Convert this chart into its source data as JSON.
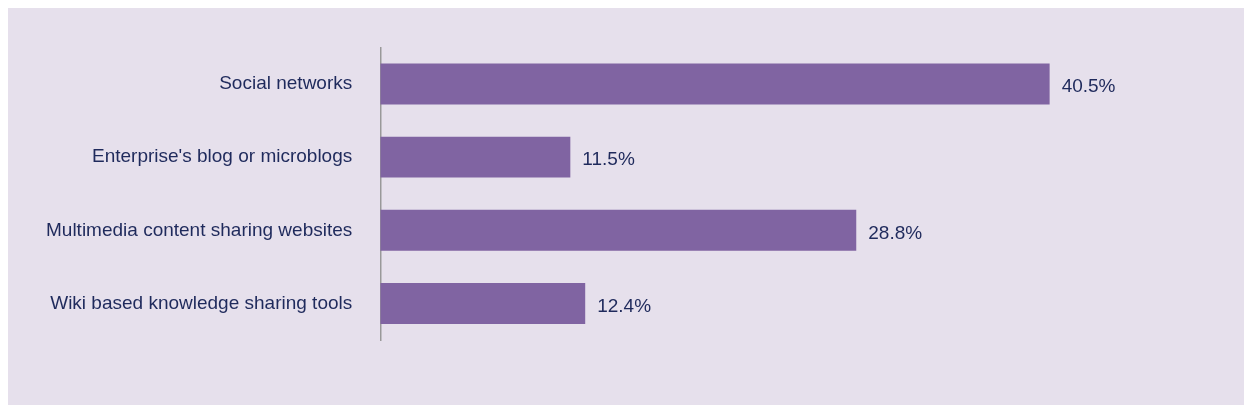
{
  "chart_data": {
    "type": "bar",
    "orientation": "horizontal",
    "categories": [
      "Social networks",
      "Enterprise's blog or microblogs",
      "Multimedia content sharing websites",
      "Wiki based knowledge sharing tools"
    ],
    "values": [
      40.5,
      11.5,
      28.8,
      12.4
    ],
    "value_labels": [
      "40.5%",
      "11.5%",
      "28.8%",
      "12.4%"
    ],
    "color": "#8064a2",
    "tick_labels": "y"
  }
}
